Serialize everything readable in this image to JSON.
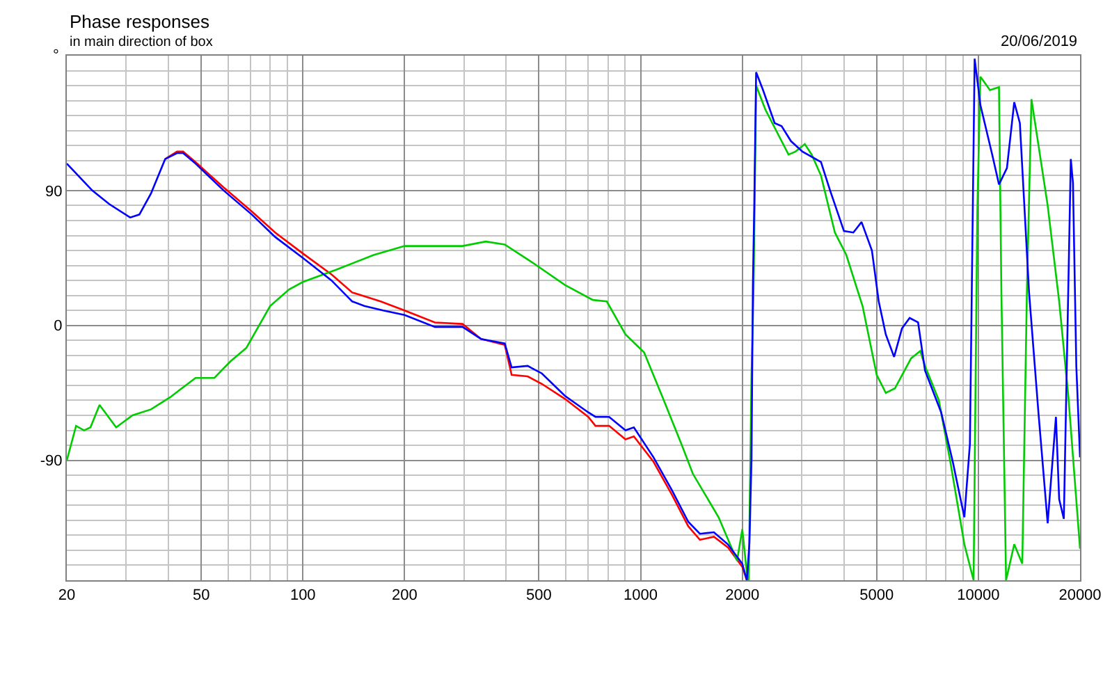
{
  "chart_data": {
    "type": "line",
    "title": "Phase responses",
    "subtitle": "in main direction of box",
    "ylabel": "°",
    "annotations": [
      "20/06/2019"
    ],
    "log": "x",
    "grid": true,
    "marker": "none",
    "line_style": "solid",
    "xlim": [
      20,
      20000
    ],
    "ylim": [
      -170,
      180
    ],
    "xticks": [
      20,
      {
        "value": 30,
        "label": null
      },
      {
        "value": 40,
        "label": null
      },
      50,
      {
        "value": 60,
        "label": null
      },
      {
        "value": 70,
        "label": null
      },
      {
        "value": 80,
        "label": null
      },
      {
        "value": 90,
        "label": null
      },
      100,
      200,
      {
        "value": 300,
        "label": null
      },
      {
        "value": 400,
        "label": null
      },
      500,
      {
        "value": 600,
        "label": null
      },
      {
        "value": 700,
        "label": null
      },
      {
        "value": 800,
        "label": null
      },
      {
        "value": 900,
        "label": null
      },
      1000,
      2000,
      {
        "value": 3000,
        "label": null
      },
      {
        "value": 4000,
        "label": null
      },
      5000,
      {
        "value": 6000,
        "label": null
      },
      {
        "value": 7000,
        "label": null
      },
      {
        "value": 8000,
        "label": null
      },
      {
        "value": 9000,
        "label": null
      },
      10000,
      20000
    ],
    "yticks": [
      {
        "value": -170,
        "label": null
      },
      {
        "value": -160,
        "label": null
      },
      {
        "value": -150,
        "label": null
      },
      {
        "value": -140,
        "label": null
      },
      {
        "value": -130,
        "label": null
      },
      {
        "value": -120,
        "label": null
      },
      {
        "value": -110,
        "label": null
      },
      {
        "value": -100,
        "label": null
      },
      -90,
      {
        "value": -80,
        "label": null
      },
      {
        "value": -70,
        "label": null
      },
      {
        "value": -60,
        "label": null
      },
      {
        "value": -50,
        "label": null
      },
      {
        "value": -40,
        "label": null
      },
      {
        "value": -30,
        "label": null
      },
      {
        "value": -20,
        "label": null
      },
      {
        "value": -10,
        "label": null
      },
      0,
      {
        "value": 10,
        "label": null
      },
      {
        "value": 20,
        "label": null
      },
      {
        "value": 30,
        "label": null
      },
      {
        "value": 40,
        "label": null
      },
      {
        "value": 50,
        "label": null
      },
      {
        "value": 60,
        "label": null
      },
      {
        "value": 70,
        "label": null
      },
      {
        "value": 80,
        "label": null
      },
      90,
      {
        "value": 100,
        "label": null
      },
      {
        "value": 110,
        "label": null
      },
      {
        "value": 120,
        "label": null
      },
      {
        "value": 130,
        "label": null
      },
      {
        "value": 140,
        "label": null
      },
      {
        "value": 150,
        "label": null
      },
      {
        "value": 160,
        "label": null
      },
      {
        "value": 170,
        "label": null
      },
      {
        "value": 180,
        "label": null
      }
    ],
    "series": [
      {
        "color": "#ff0000",
        "x": [
          39.1,
          42.4,
          44.2,
          48.1,
          58.3,
          70.6,
          82.8,
          100,
          121.6,
          140,
          170,
          200,
          246,
          297,
          337,
          396,
          415,
          463,
          510,
          597,
          700,
          735,
          807,
          902,
          955,
          1092,
          1238,
          1384,
          1498,
          1648,
          1812,
          2000,
          2063
        ],
        "values": [
          111,
          116,
          116,
          109,
          92,
          76,
          62,
          48,
          34,
          22,
          16,
          10,
          2,
          1,
          -9,
          -13,
          -33,
          -34,
          -39,
          -49,
          -61,
          -67,
          -67,
          -76,
          -74,
          -91,
          -113,
          -134,
          -143,
          -141,
          -148,
          -161,
          -170
        ]
      },
      {
        "color": "#00cc00",
        "x": [
          20,
          21.3,
          22.5,
          23.5,
          25,
          28,
          31.3,
          35.5,
          40.4,
          48.1,
          54.7,
          61,
          68,
          80,
          91,
          100,
          125,
          162,
          200,
          213,
          297,
          348,
          396,
          478,
          597,
          722,
          794,
          902,
          1024,
          1162,
          1320,
          1428,
          1702,
          1930,
          2000,
          2063,
          2090,
          2130,
          2160,
          2198,
          2341,
          2741,
          2875,
          3063,
          3210,
          3420,
          3760,
          4065,
          4540,
          5000,
          5320,
          5660,
          6320,
          6730,
          6950,
          7640,
          8260,
          9090,
          9680,
          9930,
          10140,
          10820,
          11510,
          11700,
          12080,
          12770,
          13490,
          13930,
          14360,
          16040,
          17350,
          18480,
          20000
        ],
        "values": [
          -90,
          -67,
          -70,
          -68,
          -53,
          -68,
          -60,
          -56,
          -48,
          -35,
          -35,
          -24,
          -15,
          13,
          24,
          29,
          37,
          47,
          53,
          53,
          53,
          56,
          54,
          42,
          27,
          17,
          16,
          -6,
          -18,
          -48,
          -79,
          -99,
          -128,
          -157,
          -136,
          -165,
          -170,
          -33,
          25,
          160,
          144,
          114,
          116,
          121,
          114,
          100,
          62,
          47,
          13,
          -33,
          -45,
          -42,
          -22,
          -17,
          -27,
          -50,
          -91,
          -146,
          -170,
          77,
          166,
          157,
          159,
          22,
          -170,
          -146,
          -159,
          25,
          151,
          80,
          16,
          -48,
          -149
        ]
      },
      {
        "color": "#0000ff",
        "x": [
          20,
          23.8,
          26.7,
          30.8,
          32.8,
          35.5,
          39.1,
          42.4,
          44.2,
          48.1,
          58.3,
          70.6,
          82.8,
          100,
          121.6,
          140,
          152,
          173,
          200,
          246,
          297,
          337,
          396,
          415,
          463,
          510,
          597,
          700,
          735,
          807,
          902,
          955,
          1092,
          1238,
          1384,
          1498,
          1648,
          1812,
          2000,
          2063,
          2100,
          2130,
          2150,
          2170,
          2198,
          2304,
          2494,
          2615,
          2786,
          3014,
          3420,
          3640,
          4000,
          4265,
          4510,
          4840,
          5070,
          5320,
          5630,
          5940,
          6260,
          6630,
          6950,
          7760,
          8400,
          9090,
          9440,
          9750,
          10140,
          10990,
          11510,
          12150,
          12770,
          13270,
          14130,
          15060,
          16040,
          16970,
          17350,
          17910,
          18780,
          19060,
          19500,
          20000
        ],
        "values": [
          108,
          90,
          81,
          72,
          74,
          88,
          111,
          115,
          115,
          108,
          90,
          74,
          59,
          45,
          30,
          16,
          13,
          10,
          7,
          -1,
          -1,
          -9,
          -12,
          -28,
          -27,
          -32,
          -47,
          -58,
          -61,
          -61,
          -70,
          -68,
          -88,
          -110,
          -131,
          -139,
          -138,
          -146,
          -159,
          -170,
          -145,
          -88,
          27,
          80,
          169,
          157,
          135,
          133,
          123,
          116,
          109,
          90,
          63,
          62,
          69,
          50,
          16,
          -6,
          -21,
          -2,
          5,
          2,
          -30,
          -58,
          -91,
          -128,
          -79,
          178,
          147,
          114,
          94,
          105,
          149,
          135,
          22,
          -58,
          -132,
          -61,
          -116,
          -129,
          111,
          95,
          -27,
          -88
        ]
      }
    ]
  }
}
